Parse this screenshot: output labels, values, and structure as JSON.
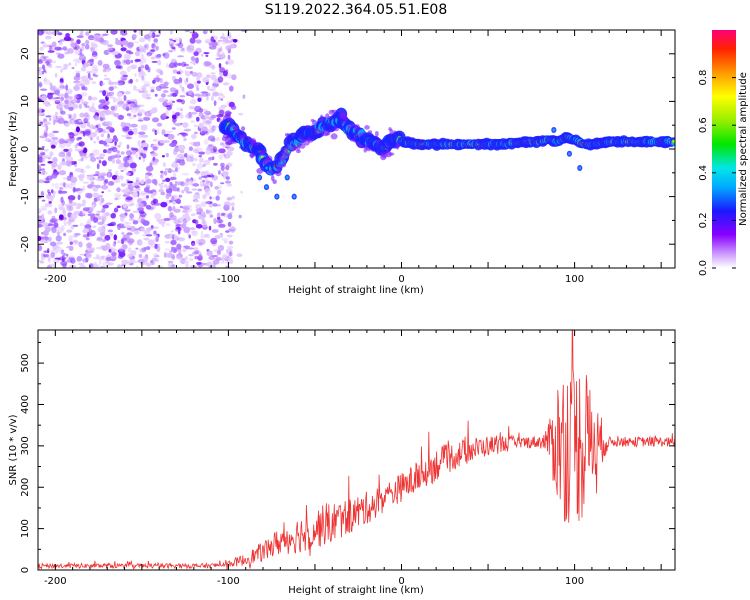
{
  "title": "S119.2022.364.05.51.E08",
  "chart_data": [
    {
      "type": "heatmap",
      "xlabel": "Height of straight line (km)",
      "ylabel": "Frequency (Hz)",
      "xlim": [
        -210,
        158
      ],
      "ylim": [
        -25,
        25
      ],
      "xticks": [
        -200,
        -100,
        0,
        100
      ],
      "yticks": [
        -20,
        -10,
        0,
        10,
        20
      ],
      "grid": false,
      "ridge": {
        "x": [
          -100,
          -95,
          -90,
          -85,
          -80,
          -75,
          -70,
          -65,
          -60,
          -55,
          -50,
          -45,
          -40,
          -35,
          -30,
          -25,
          -20,
          -15,
          -10,
          -5,
          0,
          10,
          20,
          30,
          40,
          50,
          60,
          70,
          80,
          85,
          90,
          95,
          100,
          105,
          110,
          120,
          130,
          140,
          150,
          158
        ],
        "y": [
          5,
          3,
          1.5,
          0,
          -2,
          -4.5,
          -3,
          1,
          1.5,
          3,
          4,
          4.5,
          5.5,
          6,
          4,
          3,
          2,
          1,
          0,
          2,
          1.5,
          1,
          1,
          1,
          1,
          1,
          1,
          1.5,
          1.5,
          2,
          1.5,
          2.5,
          2,
          1,
          1,
          1.5,
          1.5,
          1.5,
          1.5,
          1.5
        ]
      },
      "colorbar": {
        "label": "Normalized spectral amplitude",
        "range": [
          0,
          1
        ],
        "ticks": [
          "0.0",
          "0.2",
          "0.4",
          "0.6",
          "0.8"
        ]
      }
    },
    {
      "type": "line",
      "xlabel": "Height of straight line (km)",
      "ylabel": "SNR (10 * v/v)",
      "xlim": [
        -210,
        158
      ],
      "ylim": [
        0,
        580
      ],
      "xticks": [
        -200,
        -100,
        0,
        100
      ],
      "yticks": [
        0,
        100,
        200,
        300,
        400,
        500
      ],
      "grid": false,
      "color": "#ee3333",
      "envelope": {
        "x": [
          -210,
          -150,
          -110,
          -100,
          -90,
          -80,
          -70,
          -60,
          -50,
          -40,
          -30,
          -20,
          -10,
          0,
          10,
          20,
          30,
          40,
          50,
          60,
          70,
          80,
          85,
          90,
          95,
          100,
          105,
          110,
          120,
          130,
          140,
          150,
          158
        ],
        "mean": [
          10,
          10,
          10,
          15,
          25,
          45,
          70,
          85,
          100,
          115,
          130,
          150,
          175,
          200,
          225,
          255,
          275,
          290,
          300,
          305,
          308,
          310,
          312,
          310,
          310,
          310,
          310,
          310,
          310,
          310,
          310,
          310,
          308
        ],
        "amplitude": [
          6,
          6,
          6,
          8,
          15,
          25,
          35,
          45,
          50,
          50,
          45,
          40,
          35,
          35,
          40,
          40,
          35,
          30,
          25,
          20,
          15,
          15,
          40,
          160,
          200,
          200,
          200,
          120,
          12,
          12,
          12,
          12,
          12
        ]
      }
    }
  ]
}
